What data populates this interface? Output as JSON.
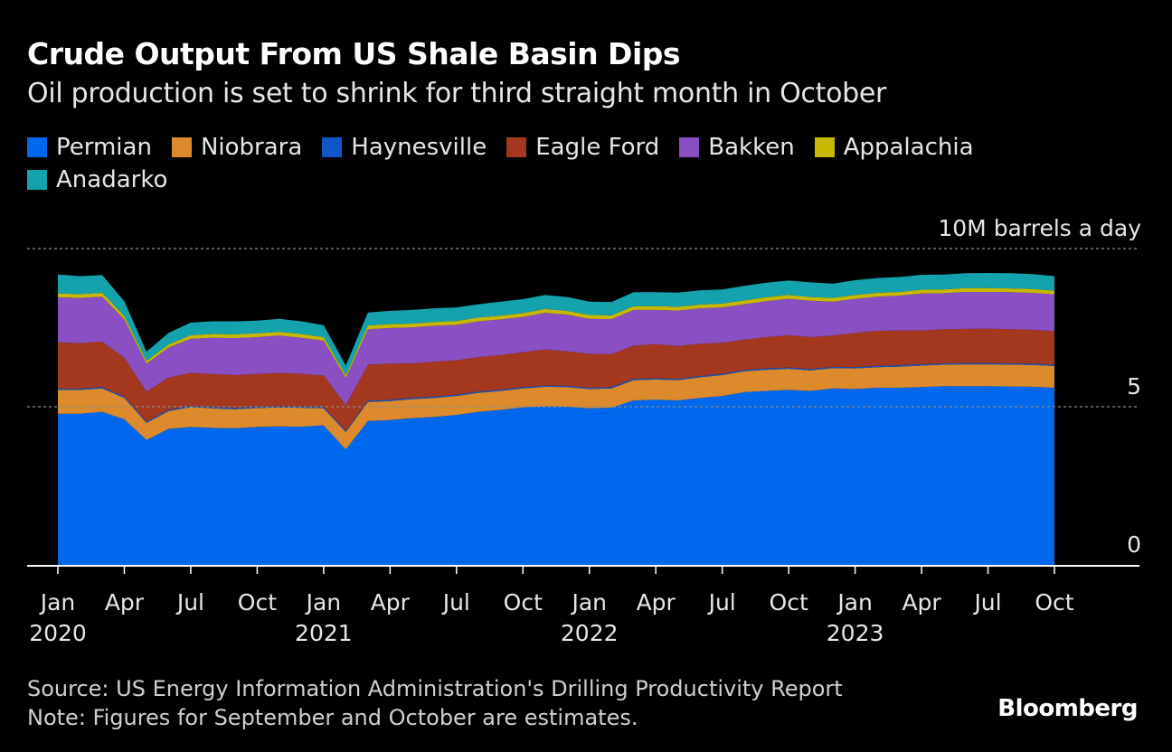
{
  "title": "Crude Output From US Shale Basin Dips",
  "subtitle": "Oil production is set to shrink for third straight month in October",
  "footer": {
    "source": "Source: US Energy Information Administration's Drilling Productivity Report",
    "note": "Note: Figures for September and October are estimates.",
    "brand": "Bloomberg"
  },
  "legend": [
    {
      "name": "Permian",
      "color": "#0068ec"
    },
    {
      "name": "Niobrara",
      "color": "#dd8a2c"
    },
    {
      "name": "Haynesville",
      "color": "#0f56c9"
    },
    {
      "name": "Eagle Ford",
      "color": "#a4381f"
    },
    {
      "name": "Bakken",
      "color": "#8a4fc2"
    },
    {
      "name": "Appalachia",
      "color": "#c8b800"
    },
    {
      "name": "Anadarko",
      "color": "#14a3ad"
    }
  ],
  "chart_data": {
    "type": "area",
    "stacked": true,
    "title": "Crude Output From US Shale Basin Dips",
    "ylabel": "10M barrels a day",
    "ylim": [
      0,
      10
    ],
    "yticks": [
      {
        "value": 0,
        "label": "0"
      },
      {
        "value": 5,
        "label": "5"
      },
      {
        "value": 10,
        "label": "10M barrels a day"
      }
    ],
    "xticks": [
      {
        "index": 0,
        "label": "Jan",
        "year": "2020"
      },
      {
        "index": 3,
        "label": "Apr",
        "year": ""
      },
      {
        "index": 6,
        "label": "Jul",
        "year": ""
      },
      {
        "index": 9,
        "label": "Oct",
        "year": ""
      },
      {
        "index": 12,
        "label": "Jan",
        "year": "2021"
      },
      {
        "index": 15,
        "label": "Apr",
        "year": ""
      },
      {
        "index": 18,
        "label": "Jul",
        "year": ""
      },
      {
        "index": 21,
        "label": "Oct",
        "year": ""
      },
      {
        "index": 24,
        "label": "Jan",
        "year": "2022"
      },
      {
        "index": 27,
        "label": "Apr",
        "year": ""
      },
      {
        "index": 30,
        "label": "Jul",
        "year": ""
      },
      {
        "index": 33,
        "label": "Oct",
        "year": ""
      },
      {
        "index": 36,
        "label": "Jan",
        "year": "2023"
      },
      {
        "index": 39,
        "label": "Apr",
        "year": ""
      },
      {
        "index": 42,
        "label": "Jul",
        "year": ""
      },
      {
        "index": 45,
        "label": "Oct",
        "year": ""
      }
    ],
    "x_months": [
      "2020-01",
      "2020-02",
      "2020-03",
      "2020-04",
      "2020-05",
      "2020-06",
      "2020-07",
      "2020-08",
      "2020-09",
      "2020-10",
      "2020-11",
      "2020-12",
      "2021-01",
      "2021-02",
      "2021-03",
      "2021-04",
      "2021-05",
      "2021-06",
      "2021-07",
      "2021-08",
      "2021-09",
      "2021-10",
      "2021-11",
      "2021-12",
      "2022-01",
      "2022-02",
      "2022-03",
      "2022-04",
      "2022-05",
      "2022-06",
      "2022-07",
      "2022-08",
      "2022-09",
      "2022-10",
      "2022-11",
      "2022-12",
      "2023-01",
      "2023-02",
      "2023-03",
      "2023-04",
      "2023-05",
      "2023-06",
      "2023-07",
      "2023-08",
      "2023-09",
      "2023-10"
    ],
    "series": [
      {
        "name": "Permian",
        "values": [
          4.78,
          4.78,
          4.84,
          4.6,
          3.95,
          4.3,
          4.36,
          4.33,
          4.32,
          4.36,
          4.38,
          4.37,
          4.41,
          3.65,
          4.55,
          4.58,
          4.64,
          4.68,
          4.74,
          4.84,
          4.9,
          4.98,
          5.01,
          5.0,
          4.95,
          4.97,
          5.2,
          5.22,
          5.2,
          5.28,
          5.34,
          5.46,
          5.5,
          5.53,
          5.5,
          5.58,
          5.56,
          5.6,
          5.6,
          5.62,
          5.65,
          5.65,
          5.65,
          5.64,
          5.63,
          5.6
        ]
      },
      {
        "name": "Niobrara",
        "values": [
          0.75,
          0.75,
          0.74,
          0.68,
          0.54,
          0.56,
          0.63,
          0.62,
          0.6,
          0.6,
          0.6,
          0.6,
          0.54,
          0.55,
          0.6,
          0.6,
          0.6,
          0.6,
          0.6,
          0.6,
          0.6,
          0.6,
          0.62,
          0.62,
          0.61,
          0.61,
          0.64,
          0.64,
          0.64,
          0.65,
          0.66,
          0.66,
          0.67,
          0.67,
          0.65,
          0.64,
          0.65,
          0.65,
          0.67,
          0.68,
          0.68,
          0.69,
          0.69,
          0.69,
          0.69,
          0.69
        ]
      },
      {
        "name": "Haynesville",
        "values": [
          0.04,
          0.04,
          0.04,
          0.04,
          0.04,
          0.04,
          0.04,
          0.04,
          0.04,
          0.04,
          0.04,
          0.04,
          0.04,
          0.04,
          0.04,
          0.04,
          0.04,
          0.04,
          0.04,
          0.04,
          0.04,
          0.04,
          0.04,
          0.04,
          0.04,
          0.04,
          0.04,
          0.04,
          0.04,
          0.04,
          0.04,
          0.04,
          0.04,
          0.04,
          0.04,
          0.04,
          0.04,
          0.04,
          0.04,
          0.04,
          0.04,
          0.04,
          0.04,
          0.04,
          0.04,
          0.04
        ]
      },
      {
        "name": "Eagle Ford",
        "values": [
          1.46,
          1.44,
          1.44,
          1.22,
          0.95,
          1.02,
          1.04,
          1.04,
          1.04,
          1.03,
          1.05,
          1.03,
          1.0,
          0.81,
          1.14,
          1.14,
          1.09,
          1.1,
          1.09,
          1.09,
          1.09,
          1.1,
          1.14,
          1.09,
          1.07,
          1.04,
          1.05,
          1.08,
          1.04,
          1.02,
          0.98,
          0.96,
          0.99,
          1.02,
          1.01,
          0.99,
          1.08,
          1.11,
          1.1,
          1.07,
          1.08,
          1.08,
          1.09,
          1.08,
          1.07,
          1.06
        ]
      },
      {
        "name": "Bakken",
        "values": [
          1.43,
          1.43,
          1.42,
          1.22,
          0.88,
          0.95,
          1.08,
          1.15,
          1.17,
          1.17,
          1.18,
          1.14,
          1.1,
          0.86,
          1.12,
          1.13,
          1.14,
          1.14,
          1.12,
          1.13,
          1.13,
          1.12,
          1.16,
          1.16,
          1.11,
          1.11,
          1.13,
          1.08,
          1.12,
          1.12,
          1.12,
          1.12,
          1.14,
          1.15,
          1.15,
          1.07,
          1.08,
          1.08,
          1.1,
          1.17,
          1.14,
          1.17,
          1.16,
          1.17,
          1.17,
          1.16
        ]
      },
      {
        "name": "Appalachia",
        "values": [
          0.12,
          0.12,
          0.12,
          0.11,
          0.09,
          0.1,
          0.11,
          0.12,
          0.12,
          0.12,
          0.12,
          0.12,
          0.11,
          0.09,
          0.12,
          0.12,
          0.12,
          0.12,
          0.12,
          0.12,
          0.12,
          0.12,
          0.12,
          0.12,
          0.12,
          0.12,
          0.12,
          0.12,
          0.12,
          0.12,
          0.12,
          0.12,
          0.12,
          0.12,
          0.12,
          0.12,
          0.12,
          0.12,
          0.12,
          0.12,
          0.12,
          0.12,
          0.12,
          0.12,
          0.12,
          0.12
        ]
      },
      {
        "name": "Anadarko",
        "values": [
          0.6,
          0.57,
          0.56,
          0.46,
          0.29,
          0.36,
          0.4,
          0.4,
          0.41,
          0.4,
          0.41,
          0.4,
          0.38,
          0.3,
          0.41,
          0.42,
          0.43,
          0.43,
          0.43,
          0.42,
          0.44,
          0.44,
          0.44,
          0.44,
          0.42,
          0.42,
          0.44,
          0.44,
          0.45,
          0.45,
          0.45,
          0.46,
          0.46,
          0.46,
          0.46,
          0.45,
          0.47,
          0.47,
          0.47,
          0.47,
          0.47,
          0.47,
          0.48,
          0.48,
          0.47,
          0.46
        ]
      }
    ]
  }
}
